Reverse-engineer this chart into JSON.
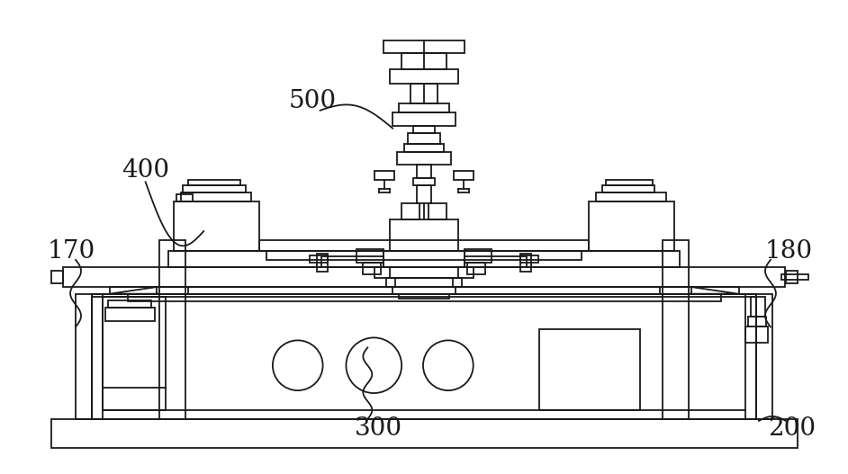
{
  "bg_color": "#ffffff",
  "line_color": "#1a1a1a",
  "lw": 1.3,
  "fig_width": 9.42,
  "fig_height": 5.27,
  "dpi": 100
}
